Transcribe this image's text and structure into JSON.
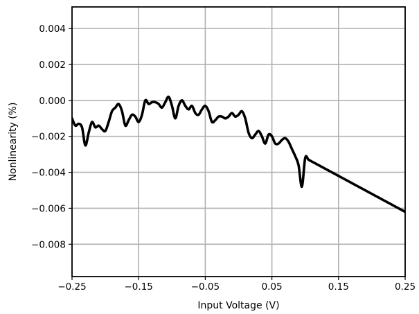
{
  "chart_data": {
    "type": "line",
    "title": "",
    "xlabel": "Input Voltage (V)",
    "ylabel": "Nonlinearity (%)",
    "xlim": [
      -0.25,
      0.25
    ],
    "ylim": [
      -0.0098,
      0.0052
    ],
    "x_ticks": [
      -0.25,
      -0.15,
      -0.05,
      0.05,
      0.15,
      0.25
    ],
    "x_tick_labels": [
      "−0.25",
      "−0.15",
      "−0.05",
      "0.05",
      "0.15",
      "0.25"
    ],
    "y_ticks": [
      0.004,
      0.002,
      0.0,
      -0.002,
      -0.004,
      -0.006,
      -0.008
    ],
    "y_tick_labels": [
      "0.004",
      "0.002",
      "0.000",
      "−0.002",
      "−0.004",
      "−0.006",
      "−0.008"
    ],
    "grid": true,
    "line_color": "#000000",
    "grid_color": "#b0b0b0",
    "series": [
      {
        "x": [
          -0.25,
          -0.245,
          -0.24,
          -0.235,
          -0.23,
          -0.225,
          -0.22,
          -0.215,
          -0.21,
          -0.205,
          -0.2,
          -0.195,
          -0.19,
          -0.185,
          -0.18,
          -0.175,
          -0.17,
          -0.165,
          -0.16,
          -0.155,
          -0.15,
          -0.145,
          -0.14,
          -0.135,
          -0.13,
          -0.125,
          -0.12,
          -0.115,
          -0.11,
          -0.105,
          -0.1,
          -0.095,
          -0.09,
          -0.085,
          -0.08,
          -0.075,
          -0.07,
          -0.065,
          -0.06,
          -0.055,
          -0.05,
          -0.045,
          -0.04,
          -0.035,
          -0.03,
          -0.025,
          -0.02,
          -0.015,
          -0.01,
          -0.005,
          0.0,
          0.005,
          0.01,
          0.015,
          0.02,
          0.025,
          0.03,
          0.035,
          0.04,
          0.045,
          0.05,
          0.055,
          0.06,
          0.065,
          0.07,
          0.075,
          0.08,
          0.085,
          0.09,
          0.095,
          0.1,
          0.105,
          0.11,
          0.115,
          0.12,
          0.125,
          0.13,
          0.135,
          0.14,
          0.145,
          0.15,
          0.155,
          0.16,
          0.165,
          0.17,
          0.175,
          0.18,
          0.185,
          0.19,
          0.195,
          0.2,
          0.205,
          0.21,
          0.215,
          0.22,
          0.225,
          0.23,
          0.235,
          0.24,
          0.245,
          0.25
        ],
        "y": [
          -0.001,
          -0.0014,
          -0.0013,
          -0.0015,
          -0.0025,
          -0.0018,
          -0.0012,
          -0.0015,
          -0.0014,
          -0.0016,
          -0.0017,
          -0.0012,
          -0.0006,
          -0.0004,
          -0.0002,
          -0.0006,
          -0.0014,
          -0.0011,
          -0.0008,
          -0.0009,
          -0.0012,
          -0.0008,
          0.0,
          -0.0002,
          -0.0001,
          -0.0001,
          -0.0002,
          -0.0004,
          -0.0001,
          0.0002,
          -0.0003,
          -0.001,
          -0.0003,
          0.0,
          -0.0003,
          -0.0005,
          -0.0003,
          -0.0007,
          -0.0008,
          -0.0005,
          -0.0003,
          -0.0006,
          -0.0012,
          -0.0011,
          -0.0009,
          -0.0009,
          -0.001,
          -0.0009,
          -0.0007,
          -0.0009,
          -0.0008,
          -0.0006,
          -0.001,
          -0.0018,
          -0.0021,
          -0.0019,
          -0.0017,
          -0.002,
          -0.0024,
          -0.0019,
          -0.002,
          -0.0024,
          -0.0024,
          -0.0022,
          -0.0021,
          -0.0023,
          -0.0027,
          -0.0031,
          -0.0036,
          -0.0048,
          -0.0032,
          -0.0033,
          -0.0034,
          -0.0035,
          -0.0036,
          -0.0037,
          -0.0038,
          -0.0039,
          -0.004,
          -0.0041,
          -0.0042,
          -0.0043,
          -0.0044,
          -0.0045,
          -0.0046,
          -0.0047,
          -0.0048,
          -0.0049,
          -0.005,
          -0.0051,
          -0.0052,
          -0.0053,
          -0.0054,
          -0.0055,
          -0.0056,
          -0.0057,
          -0.0058,
          -0.0059,
          -0.006,
          -0.0061,
          -0.0062
        ]
      }
    ]
  }
}
